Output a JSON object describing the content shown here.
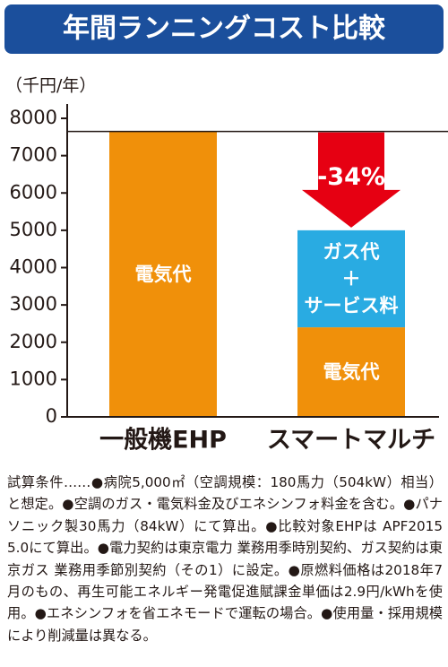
{
  "chart_data": {
    "type": "stacked_bar",
    "title": "年間ランニングコスト比較",
    "y_label": "（千円/年）",
    "categories": [
      "一般機EHP",
      "スマートマルチ"
    ],
    "series": [
      {
        "name": "電気代",
        "color": "#f0900a",
        "values": [
          7650,
          2400
        ]
      },
      {
        "name": "ガス代\n＋\nサービス料",
        "color": "#29abe2",
        "values": [
          null,
          2600
        ]
      }
    ],
    "ylim": [
      0,
      8000
    ],
    "yticks": [
      0,
      1000,
      2000,
      3000,
      4000,
      5000,
      6000,
      7000,
      8000
    ],
    "annotation": "-34%",
    "annotation_color": "#e60012",
    "note": "試算条件……●病院5,000㎡（空調規模：180馬力（504kW）相当）と想定。●空調のガス・電気料金及びエネシンフォ料金を含む。●パナソニック製30馬力（84kW）にて算出。●比較対象EHPは APF2015　5.0にて算出。●電力契約は東京電力 業務用季時別契約、ガス契約は東京ガス 業務用季節別契約（その1）に設定。●原燃料価格は2018年7月のもの、再生可能エネルギー発電促進賦課金単価は2.9円/kWhを使用。●エネシンフォを省エネモードで運転の場合。●使用量・採用規模により削減量は異なる。"
  }
}
